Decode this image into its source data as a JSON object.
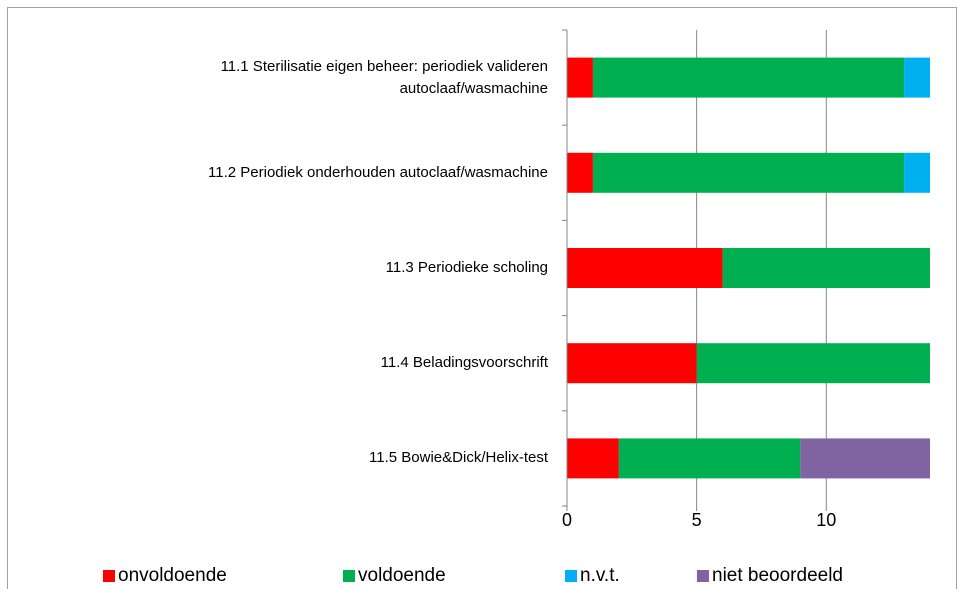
{
  "chart_data": {
    "type": "stacked_barh",
    "categories": [
      "11.1 Sterilisatie eigen beheer: periodiek valideren autoclaaf/wasmachine",
      "11.2 Periodiek onderhouden autoclaaf/wasmachine",
      "11.3 Periodieke scholing",
      "11.4 Beladingsvoorschrift",
      "11.5 Bowie&Dick/Helix-test"
    ],
    "series": [
      {
        "name": "onvoldoende",
        "color": "#ff0000",
        "values": [
          1,
          1,
          6,
          5,
          2
        ]
      },
      {
        "name": "voldoende",
        "color": "#00b050",
        "values": [
          12,
          12,
          8,
          9,
          7
        ]
      },
      {
        "name": "n.v.t.",
        "color": "#00b0f0",
        "values": [
          1,
          1,
          0,
          0,
          0
        ]
      },
      {
        "name": "niet beoordeeld",
        "color": "#8064a2",
        "values": [
          0,
          0,
          0,
          0,
          5
        ]
      }
    ],
    "xlim": [
      0,
      14
    ],
    "xticks": [
      0,
      5,
      10
    ],
    "grid": true
  }
}
